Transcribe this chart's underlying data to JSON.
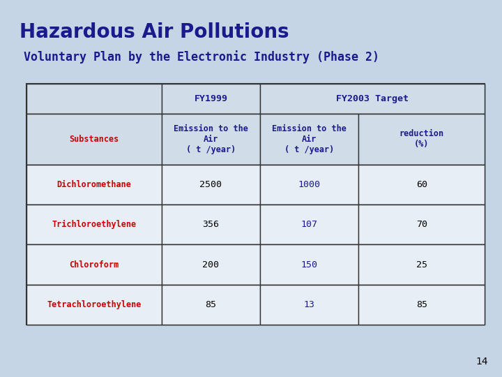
{
  "title": "Hazardous Air Pollutions",
  "subtitle": "Voluntary Plan by the Electronic Industry (Phase 2)",
  "title_color": "#1a1a8c",
  "subtitle_color": "#1a1a8c",
  "background_color": "#c5d5e5",
  "page_number": "14",
  "table": {
    "header1_labels": [
      "FY1999",
      "FY2003 Target"
    ],
    "header2_labels": [
      "Substances",
      "Emission to the\nAir\n( t /year)",
      "Emission to the\nAir\n( t /year)",
      "reduction\n(%)"
    ],
    "rows": [
      [
        "Dichloromethane",
        "2500",
        "1000",
        "60"
      ],
      [
        "Trichloroethylene",
        "356",
        "107",
        "70"
      ],
      [
        "Chloroform",
        "200",
        "150",
        "25"
      ],
      [
        "Tetrachloroethylene",
        "85",
        "13",
        "85"
      ]
    ],
    "substance_color": "#cc0000",
    "header_color": "#1a1a8c",
    "fy1999_color": "#000000",
    "fy2003_color": "#1a1a8c",
    "reduction_color": "#000000",
    "header_bg": "#d0dce8",
    "cell_bg": "#e8eef5",
    "border_color": "#333333"
  }
}
